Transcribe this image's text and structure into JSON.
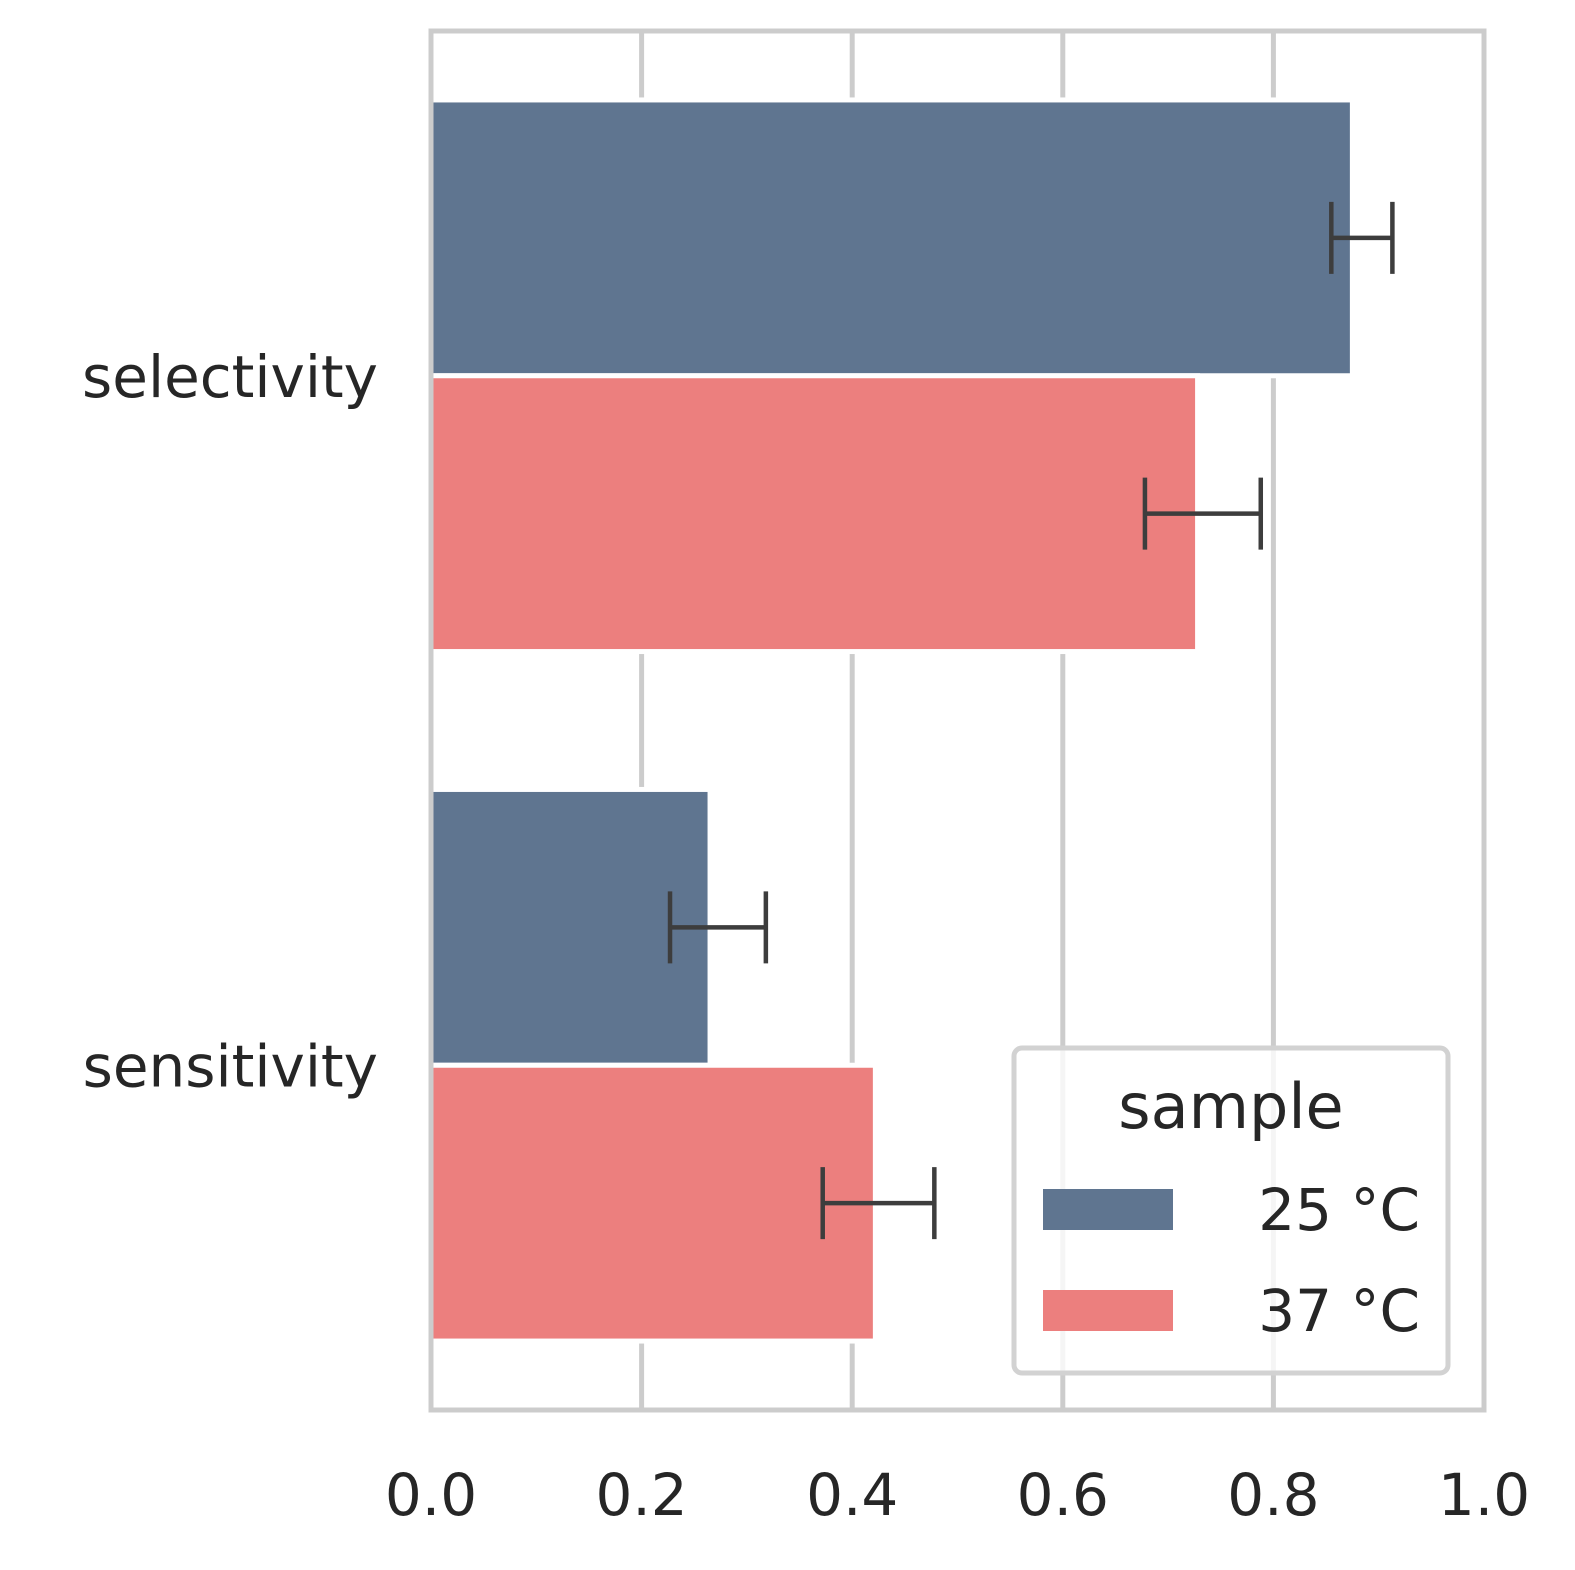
{
  "chart_data": {
    "type": "bar",
    "orientation": "horizontal",
    "categories": [
      "selectivity",
      "sensitivity"
    ],
    "series": [
      {
        "name": "25 °C",
        "color": "#5f7590",
        "values": [
          0.875,
          0.265
        ],
        "error_low": [
          0.855,
          0.227
        ],
        "error_high": [
          0.913,
          0.318
        ]
      },
      {
        "name": "37 °C",
        "color": "#ec7f7e",
        "values": [
          0.728,
          0.422
        ],
        "error_low": [
          0.678,
          0.372
        ],
        "error_high": [
          0.788,
          0.478
        ]
      }
    ],
    "xlim": [
      0.0,
      1.0
    ],
    "xticks": [
      "0.0",
      "0.2",
      "0.4",
      "0.6",
      "0.8",
      "1.0"
    ],
    "xlabel": "",
    "ylabel": "",
    "grid": "vertical",
    "legend": {
      "title": "sample",
      "placement": "lower-right"
    }
  }
}
